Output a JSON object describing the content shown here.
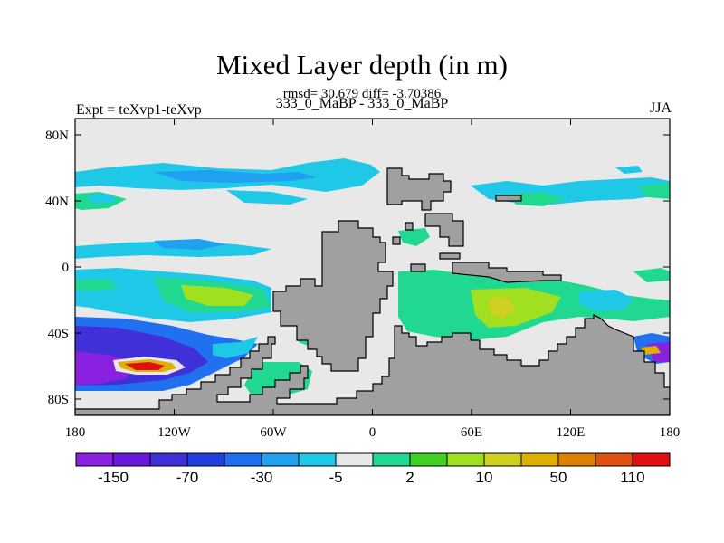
{
  "title": "Mixed Layer depth (in m)",
  "stats_line": "rmsd= 30.679 diff= -3.70386",
  "case_line": "333_0_MaBP - 333_0_MaBP",
  "left_label": "Expt = teXvp1-teXvp",
  "right_label": "JJA",
  "colors": {
    "land": "#a0a0a0",
    "ocean_zero": "#e8e8e8",
    "palette": [
      "#8a20e0",
      "#6a18dc",
      "#4030d8",
      "#2040e0",
      "#2070f0",
      "#20a0f0",
      "#20c8e8",
      "#e8e8e8",
      "#20d890",
      "#40d020",
      "#a0e020",
      "#d0d020",
      "#e0b000",
      "#e08000",
      "#e05010",
      "#e01010"
    ]
  },
  "chart_data": {
    "type": "heatmap",
    "title": "Mixed Layer depth (in m)",
    "x_ticks": [
      "180",
      "120W",
      "60W",
      "0",
      "60E",
      "120E",
      "180"
    ],
    "y_ticks": [
      "80N",
      "40N",
      "0",
      "40S",
      "80S"
    ],
    "xlim": [
      -180,
      180
    ],
    "ylim": [
      -90,
      90
    ],
    "colorbar": {
      "labels": [
        "-150",
        "-70",
        "-30",
        "-5",
        "2",
        "10",
        "50",
        "110"
      ],
      "n_bins": 16
    }
  }
}
